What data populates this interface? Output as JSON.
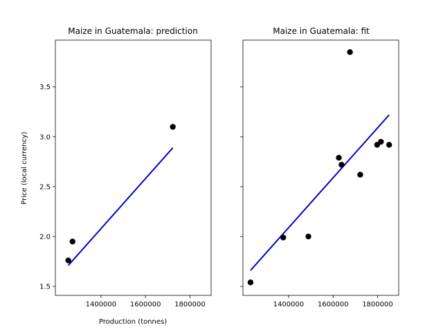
{
  "chart_data": [
    {
      "type": "scatter",
      "title": "Maize in Guatemala: prediction",
      "xlabel": "Production (tonnes)",
      "ylabel": "Price (local currency)",
      "xlim": [
        1195000,
        1895000
      ],
      "ylim": [
        1.41,
        3.97
      ],
      "xticks": [
        1400000,
        1600000,
        1800000
      ],
      "xtick_labels": [
        "1400000",
        "1600000",
        "1800000"
      ],
      "yticks": [
        1.5,
        2.0,
        2.5,
        3.0,
        3.5
      ],
      "ytick_labels": [
        "1.5",
        "2.0",
        "2.5",
        "3.0",
        "3.5"
      ],
      "points": [
        {
          "x": 1253000,
          "y": 1.76
        },
        {
          "x": 1272000,
          "y": 1.95
        },
        {
          "x": 1723000,
          "y": 3.1
        }
      ],
      "line": {
        "x": [
          1253000,
          1723000
        ],
        "y": [
          1.71,
          2.89
        ]
      },
      "point_color": "#000000",
      "line_color": "#0000cc"
    },
    {
      "type": "scatter",
      "title": "Maize in Guatemala: fit",
      "xlabel": "",
      "ylabel": "",
      "xlim": [
        1195000,
        1895000
      ],
      "ylim": [
        1.41,
        3.97
      ],
      "xticks": [
        1400000,
        1600000,
        1800000
      ],
      "xtick_labels": [
        "1400000",
        "1600000",
        "1800000"
      ],
      "yticks": [
        1.5,
        2.0,
        2.5,
        3.0,
        3.5
      ],
      "ytick_labels": [],
      "points": [
        {
          "x": 1229000,
          "y": 1.54
        },
        {
          "x": 1376000,
          "y": 1.99
        },
        {
          "x": 1489000,
          "y": 2.0
        },
        {
          "x": 1626000,
          "y": 2.79
        },
        {
          "x": 1638000,
          "y": 2.72
        },
        {
          "x": 1676000,
          "y": 3.85
        },
        {
          "x": 1722000,
          "y": 2.62
        },
        {
          "x": 1798000,
          "y": 2.92
        },
        {
          "x": 1815000,
          "y": 2.95
        },
        {
          "x": 1852000,
          "y": 2.92
        }
      ],
      "line": {
        "x": [
          1229000,
          1852000
        ],
        "y": [
          1.66,
          3.22
        ]
      },
      "point_color": "#000000",
      "line_color": "#0000cc"
    }
  ]
}
